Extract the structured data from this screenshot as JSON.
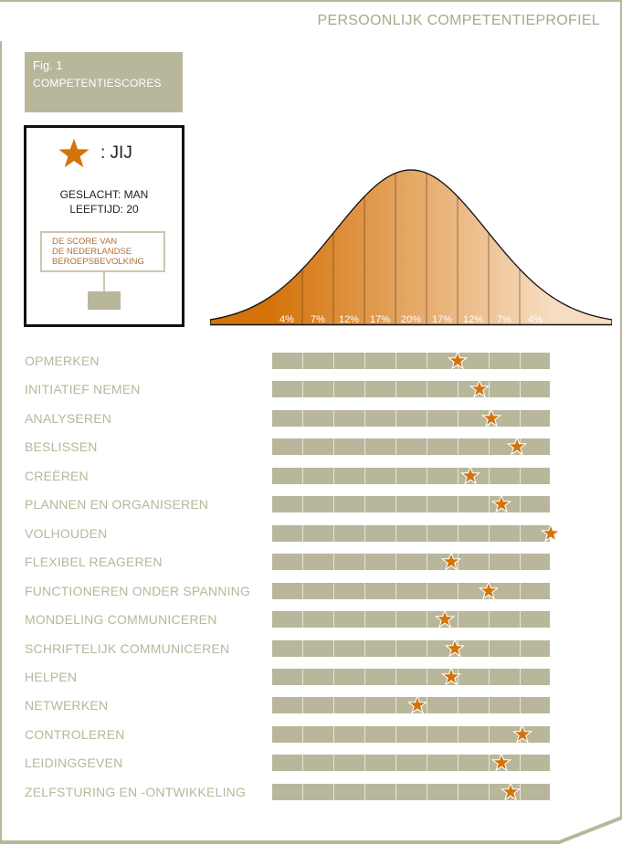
{
  "header": {
    "title": "PERSOONLIJK COMPETENTIEPROFIEL"
  },
  "figure": {
    "label": "Fig. 1",
    "title": "COMPETENTIESCORES"
  },
  "legend": {
    "you_label": ": JIJ",
    "gender": "GESLACHT: MAN",
    "age": "LEEFTIJD: 20",
    "population": [
      "DE SCORE VAN",
      "DE NEDERLANDSE",
      "BEROEPSBEVOLKING"
    ]
  },
  "colors": {
    "accent": "#d4730b",
    "bar": "#b8b79b",
    "label": "#b8b79b",
    "curve_dark": "#d4730b",
    "curve_light": "#f6dcc0"
  },
  "icons": {
    "legend": "star-icon",
    "score": "star-icon"
  },
  "chart_data": [
    {
      "type": "area",
      "x_labels": [
        "4%",
        "7%",
        "12%",
        "17%",
        "20%",
        "17%",
        "12%",
        "7%",
        "4%"
      ],
      "segment_percentages": [
        4,
        7,
        12,
        17,
        20,
        17,
        12,
        7,
        4
      ]
    },
    {
      "type": "scatter",
      "scale": {
        "segments": 9,
        "min": 0,
        "max": 9
      },
      "categories": [
        "OPMERKEN",
        "INITIATIEF NEMEN",
        "ANALYSEREN",
        "BESLISSEN",
        "CREËREN",
        "PLANNEN EN ORGANISEREN",
        "VOLHOUDEN",
        "FLEXIBEL REAGEREN",
        "FUNCTIONEREN ONDER SPANNING",
        "MONDELING COMMUNICEREN",
        "SCHRIFTELIJK COMMUNICEREN",
        "HELPEN",
        "NETWERKEN",
        "CONTROLEREN",
        "LEIDINGGEVEN",
        "ZELFSTURING EN -ONTWIKKELING"
      ],
      "values": [
        6.0,
        6.7,
        7.1,
        7.9,
        6.4,
        7.4,
        9.0,
        5.8,
        7.0,
        5.6,
        5.9,
        5.8,
        4.7,
        8.1,
        7.4,
        7.7
      ]
    }
  ]
}
